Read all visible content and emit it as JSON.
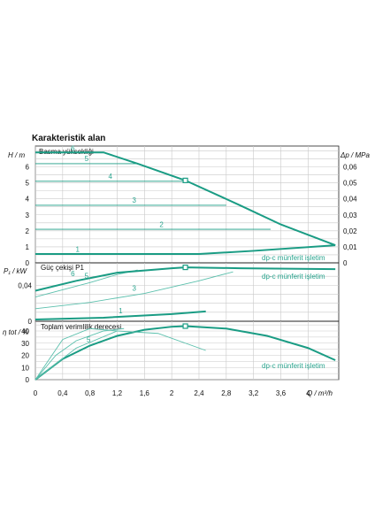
{
  "title": "Karakteristik alan",
  "colors": {
    "curve": "#1a9c84",
    "curve_light": "#5cc0ad",
    "text_green": "#2aa58f",
    "grid": "#c9c9c9"
  },
  "x_axis": {
    "label": "Q / m³/h",
    "ticks": [
      "0",
      "0,4",
      "0,8",
      "1,2",
      "1,6",
      "2",
      "2,4",
      "2,8",
      "3,2",
      "3,6",
      "4"
    ],
    "range": [
      0,
      4.45
    ]
  },
  "panels": [
    {
      "id": "head",
      "title": "Basma yüksekliği",
      "ylabel": "H / m",
      "ylabel_right": "Δp / MPa",
      "yticks": [
        "0",
        "1",
        "2",
        "3",
        "4",
        "5",
        "6"
      ],
      "yticks_right": [
        "0",
        "0,01",
        "0,02",
        "0,03",
        "0,04",
        "0,05",
        "0,06"
      ],
      "mode_label": "dp-c münferit işletim",
      "curve_labels": [
        "1",
        "2",
        "3",
        "4",
        "5",
        "6"
      ]
    },
    {
      "id": "power",
      "title": "Güç çekişi P1",
      "ylabel": "P₁ / kW",
      "yticks": [
        "0",
        "0,04"
      ],
      "mode_label": "dp-c münferit işletim",
      "curve_labels": [
        "1",
        "3",
        "5",
        "6"
      ]
    },
    {
      "id": "efficiency",
      "title": "Toplam verimlilik derecesi",
      "ylabel": "η tot / %",
      "yticks": [
        "0",
        "10",
        "20",
        "30",
        "40"
      ],
      "mode_label": "dp-c münferit işletim",
      "curve_labels": [
        "5"
      ]
    }
  ],
  "chart_data": [
    {
      "type": "line",
      "title": "Basma yüksekliği",
      "xlabel": "Q / m³/h",
      "ylabel": "H / m",
      "xlim": [
        0,
        4.45
      ],
      "ylim": [
        0,
        7.3
      ],
      "series": [
        {
          "name": "1",
          "x": [
            0,
            2.4,
            3.2,
            4.4
          ],
          "y": [
            0.55,
            0.55,
            0.75,
            1.1
          ]
        },
        {
          "name": "2",
          "x": [
            0,
            3.45
          ],
          "y": [
            2.1,
            2.1
          ]
        },
        {
          "name": "3",
          "x": [
            0,
            2.8
          ],
          "y": [
            3.6,
            3.6
          ]
        },
        {
          "name": "4",
          "x": [
            0,
            2.2
          ],
          "y": [
            5.1,
            5.1
          ]
        },
        {
          "name": "5",
          "x": [
            0,
            1.5
          ],
          "y": [
            6.2,
            6.2
          ]
        },
        {
          "name": "6",
          "x": [
            0,
            1.0,
            1.5,
            2.2,
            3.0,
            3.6,
            4.4
          ],
          "y": [
            6.9,
            6.9,
            6.2,
            5.15,
            3.6,
            2.4,
            1.1
          ]
        }
      ],
      "annotations": [
        "dp-c münferit işletim"
      ]
    },
    {
      "type": "line",
      "title": "Güç çekişi P1",
      "xlabel": "Q / m³/h",
      "ylabel": "P₁ / kW",
      "xlim": [
        0,
        4.45
      ],
      "ylim": [
        0,
        0.065
      ],
      "series": [
        {
          "name": "1",
          "x": [
            0,
            1.0,
            2.0,
            2.5
          ],
          "y": [
            0.002,
            0.004,
            0.008,
            0.011
          ]
        },
        {
          "name": "3",
          "x": [
            0,
            0.8,
            1.6,
            2.4,
            2.9
          ],
          "y": [
            0.014,
            0.021,
            0.031,
            0.045,
            0.055
          ]
        },
        {
          "name": "5",
          "x": [
            0,
            0.4,
            0.8,
            1.2,
            1.5
          ],
          "y": [
            0.027,
            0.035,
            0.043,
            0.052,
            0.057
          ]
        },
        {
          "name": "6",
          "x": [
            0,
            0.6,
            1.2,
            2.0,
            2.2,
            3.0,
            4.4
          ],
          "y": [
            0.034,
            0.045,
            0.054,
            0.059,
            0.06,
            0.059,
            0.058
          ]
        }
      ],
      "annotations": [
        "dp-c münferit işletim"
      ]
    },
    {
      "type": "line",
      "title": "Toplam verimlilik derecesi",
      "xlabel": "Q / m³/h",
      "ylabel": "η tot / %",
      "xlim": [
        0,
        4.45
      ],
      "ylim": [
        0,
        48
      ],
      "series": [
        {
          "name": "6",
          "x": [
            0,
            0.4,
            0.8,
            1.2,
            1.6,
            2.0,
            2.2,
            2.8,
            3.4,
            4.0,
            4.4
          ],
          "y": [
            0,
            17,
            28,
            36,
            41,
            43.5,
            44,
            42,
            36,
            26,
            16
          ]
        },
        {
          "name": "5",
          "x": [
            0,
            0.3,
            0.6,
            1.0,
            1.3
          ],
          "y": [
            0,
            20,
            32,
            40,
            42
          ]
        },
        {
          "name": "3",
          "x": [
            0,
            0.6,
            1.2,
            1.8,
            2.5
          ],
          "y": [
            0,
            26,
            40,
            38,
            24
          ]
        },
        {
          "name": "2",
          "x": [
            0,
            0.4,
            0.8,
            1.2
          ],
          "y": [
            0,
            33,
            42,
            40
          ]
        }
      ],
      "annotations": [
        "dp-c münferit işletim"
      ]
    }
  ]
}
